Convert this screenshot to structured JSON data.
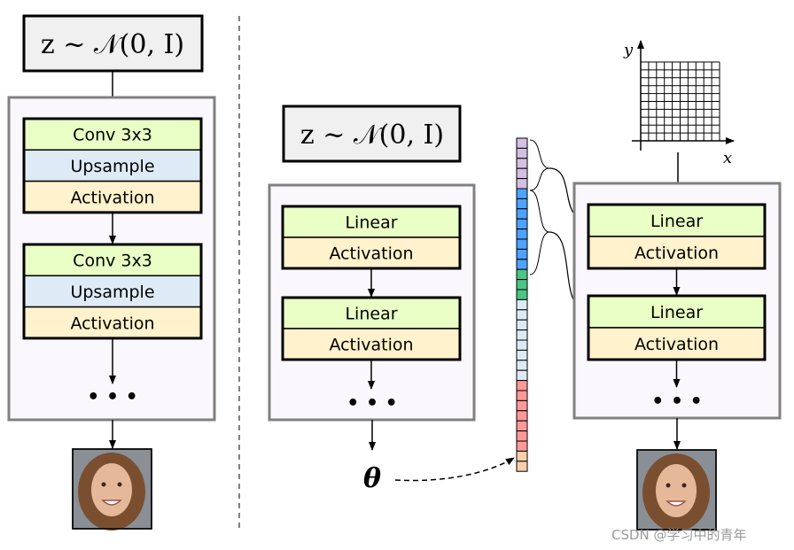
{
  "colors": {
    "linear": "#eaffc5",
    "upsample": "#deebf7",
    "activation": "#fff2cc",
    "container": "#faf8fc",
    "container_border": "#808080",
    "formula_bg": "#f0f0f0"
  },
  "formula": "z ~ 𝒩(0, I)",
  "left": {
    "blocks": [
      [
        "Conv 3x3",
        "Upsample",
        "Activation"
      ],
      [
        "Conv 3x3",
        "Upsample",
        "Activation"
      ]
    ],
    "ellipsis": "• • •"
  },
  "middle": {
    "blocks": [
      [
        "Linear",
        "Activation"
      ],
      [
        "Linear",
        "Activation"
      ]
    ],
    "ellipsis": "• • •",
    "theta": "θ"
  },
  "vector": {
    "segments": [
      {
        "color": "#d4c0e2",
        "count": 5
      },
      {
        "color": "#4da3ff",
        "count": 8
      },
      {
        "color": "#4ac585",
        "count": 3
      },
      {
        "color": "#ddeaf6",
        "count": 8
      },
      {
        "color": "#ff9999",
        "count": 7
      },
      {
        "color": "#f9cfa8",
        "count": 2
      }
    ]
  },
  "right": {
    "blocks": [
      [
        "Linear",
        "Activation"
      ],
      [
        "Linear",
        "Activation"
      ]
    ],
    "ellipsis": "• • •",
    "x_label": "x",
    "y_label": "y"
  },
  "watermark": "CSDN @学习中的青年"
}
